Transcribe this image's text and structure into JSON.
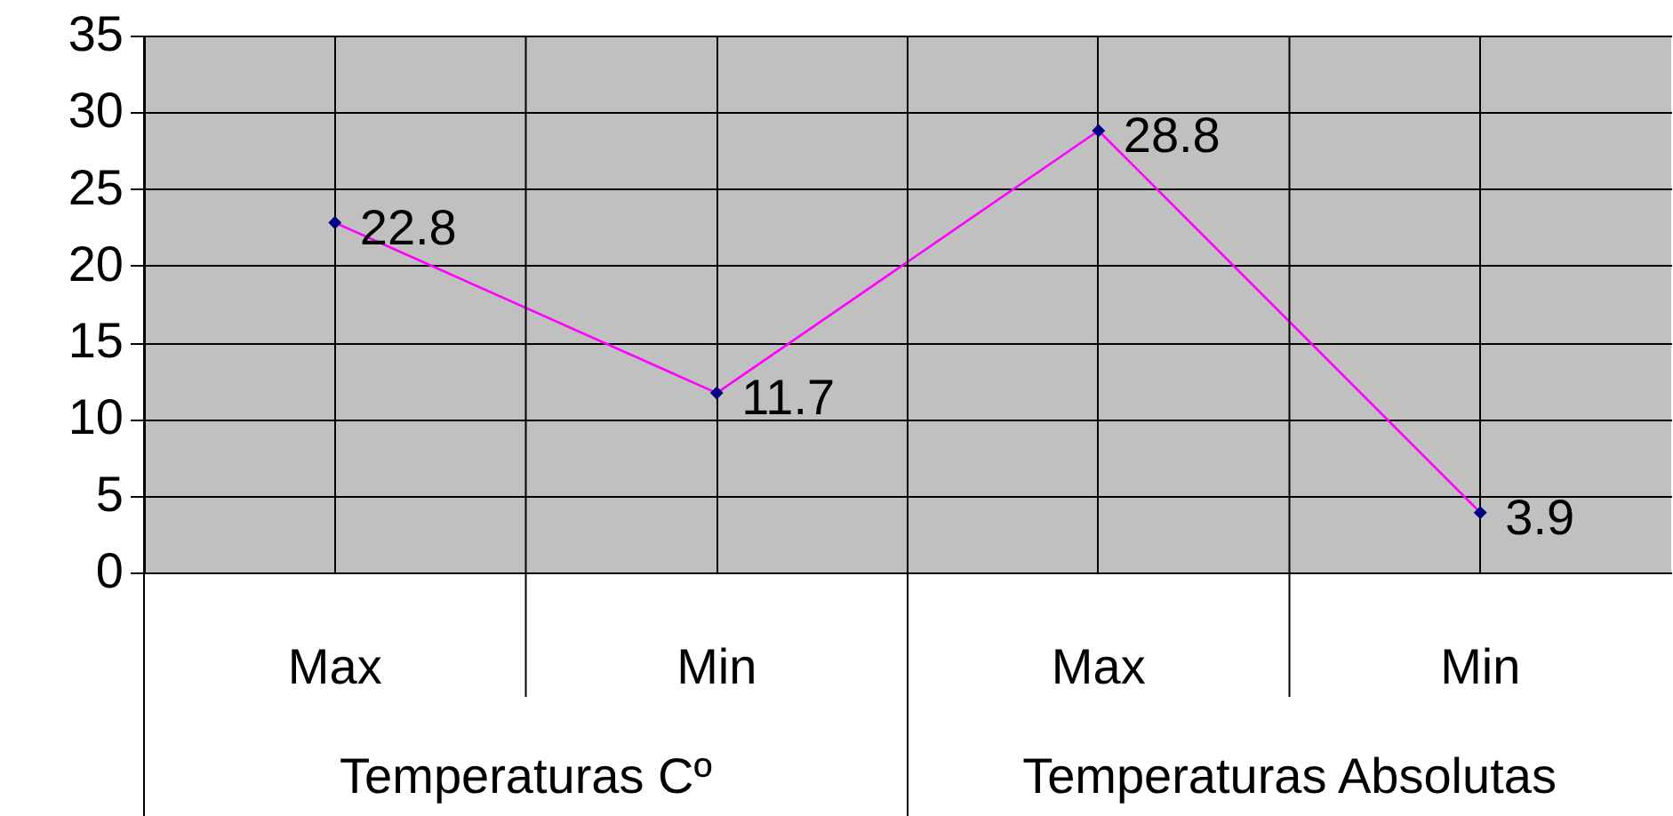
{
  "chart_data": {
    "type": "line",
    "categories": [
      "Max",
      "Min",
      "Max",
      "Min"
    ],
    "annotations": [
      "Temperaturas Cº",
      "Temperaturas Absolutas"
    ],
    "series": [
      {
        "color": "#ff00ff",
        "values": [
          22.8,
          11.7,
          28.8,
          3.9
        ]
      }
    ],
    "ylim": [
      0,
      35
    ],
    "yticks": [
      0,
      5,
      10,
      15,
      20,
      25,
      30,
      35
    ],
    "grid": true,
    "marker": "diamond",
    "data_labels": true
  }
}
